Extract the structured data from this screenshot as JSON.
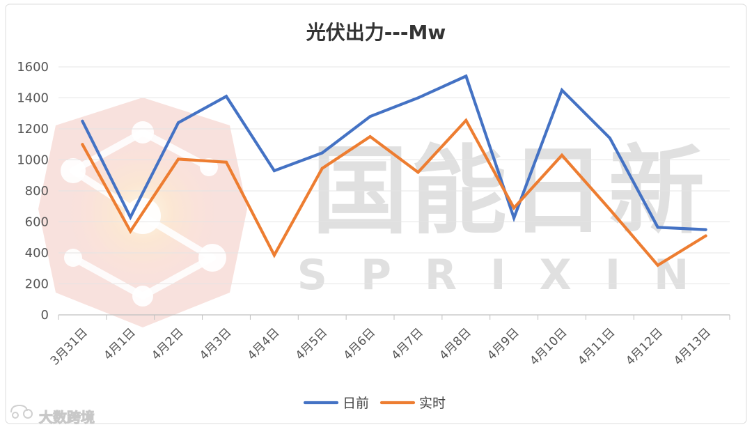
{
  "chart_data": {
    "type": "line",
    "title": "光伏出力---Mw",
    "categories": [
      "3月31日",
      "4月1日",
      "4月2日",
      "4月3日",
      "4月4日",
      "4月5日",
      "4月6日",
      "4月7日",
      "4月8日",
      "4月9日",
      "4月10日",
      "4月11日",
      "4月12日",
      "4月13日"
    ],
    "series": [
      {
        "name": "日前",
        "color": "#4472c4",
        "values": [
          1250,
          630,
          1240,
          1410,
          930,
          1045,
          1280,
          1400,
          1540,
          625,
          1450,
          1140,
          565,
          550
        ]
      },
      {
        "name": "实时",
        "color": "#ed7d31",
        "values": [
          1100,
          540,
          1005,
          985,
          385,
          945,
          1150,
          920,
          1255,
          690,
          1030,
          680,
          320,
          510
        ]
      }
    ],
    "ylim": [
      0,
      1600
    ],
    "yticks": [
      0,
      200,
      400,
      600,
      800,
      1000,
      1200,
      1400,
      1600
    ],
    "grid": true,
    "legend_position": "bottom"
  },
  "watermark": {
    "text_cn": "国能日新",
    "text_en": "SPRIXIN"
  },
  "corner_badge": {
    "text": "大数跨境"
  }
}
